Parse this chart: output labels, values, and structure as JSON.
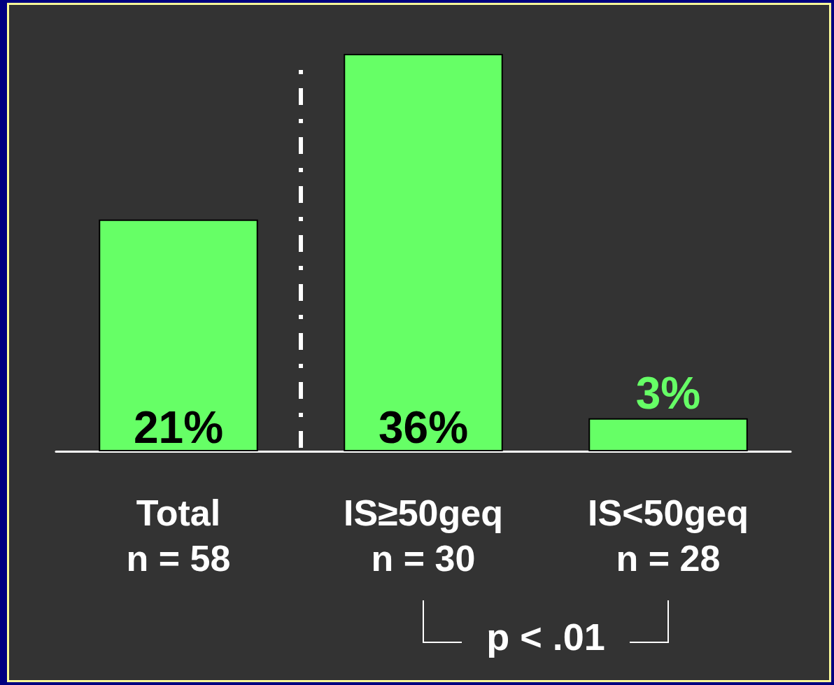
{
  "chart_data": {
    "type": "bar",
    "categories": [
      "Total\nn = 58",
      "IS≥50geq\nn = 30",
      "IS<50geq\nn = 28"
    ],
    "values": [
      21,
      36,
      3
    ],
    "value_labels": [
      "21%",
      "36%",
      "3%"
    ],
    "color": "#66ff66",
    "annotations": [
      "p < .01"
    ]
  }
}
